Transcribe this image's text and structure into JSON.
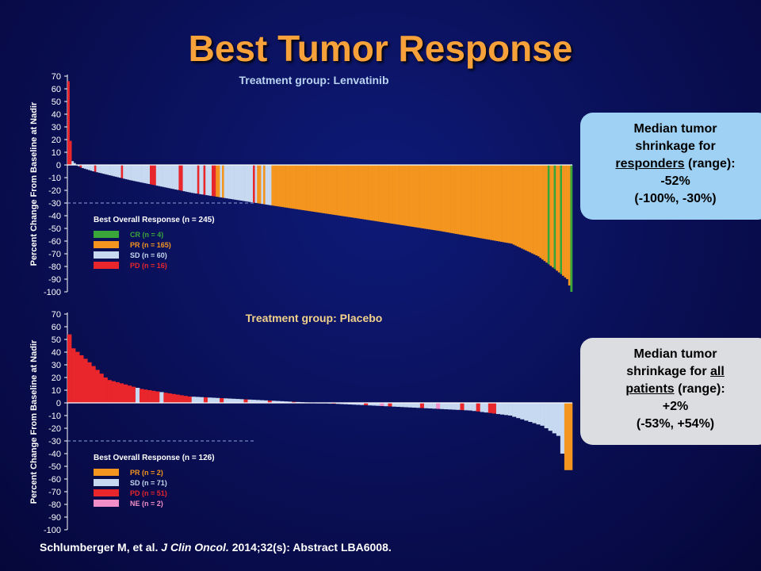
{
  "slide_title": "Best Tumor Response",
  "callouts": {
    "lenvatinib": {
      "line1": "Median tumor",
      "line2": "shrinkage for",
      "line3_underlined": "responders",
      "line3_rest": " (range):",
      "value": "-52%",
      "range": "(-100%, -30%)"
    },
    "placebo": {
      "line1": "Median tumor",
      "line2_prefix": "shrinkage for ",
      "line2_underlined": "all",
      "line3_underlined": "patients",
      "line3_rest": " (range):",
      "value": "+2%",
      "range": "(-53%, +54%)"
    }
  },
  "footer": {
    "authors": "Schlumberger M, et al.",
    "journal": "J Clin Oncol.",
    "rest": "2014;32(s): Abstract LBA6008."
  },
  "colors": {
    "CR": "#3aa63a",
    "PR": "#f4951f",
    "SD": "#c6d9f0",
    "PD": "#e8262c",
    "NE": "#f28fc8",
    "background": "#0a0f55",
    "title": "#f7a13a"
  },
  "chart_data": [
    {
      "type": "bar",
      "title": "Treatment group: Lenvatinib",
      "title_color": "#b9d3f1",
      "ylabel": "Percent Change From Baseline at Nadir",
      "ylim": [
        -100,
        70
      ],
      "yticks": [
        70,
        60,
        50,
        40,
        30,
        20,
        10,
        0,
        -10,
        -20,
        -30,
        -40,
        -50,
        -60,
        -70,
        -80,
        -90,
        -100
      ],
      "reference_line": -30,
      "legend_title": "Best Overall Response (n = 245)",
      "legend": [
        {
          "key": "CR",
          "label": "CR (n = 4)"
        },
        {
          "key": "PR",
          "label": "PR (n = 165)"
        },
        {
          "key": "SD",
          "label": "SD (n = 60)"
        },
        {
          "key": "PD",
          "label": "PD (n = 16)"
        }
      ],
      "n": 245,
      "bar_colors_by_index": [
        {
          "range": [
            0,
            1
          ],
          "key": "PD"
        },
        {
          "range": [
            6,
            6
          ],
          "key": "PD"
        },
        {
          "range": [
            13,
            13
          ],
          "key": "PD"
        },
        {
          "range": [
            26,
            26
          ],
          "key": "PD"
        },
        {
          "range": [
            40,
            42
          ],
          "key": "PD"
        },
        {
          "range": [
            54,
            55
          ],
          "key": "PD"
        },
        {
          "range": [
            63,
            63
          ],
          "key": "PD"
        },
        {
          "range": [
            66,
            66
          ],
          "key": "PD"
        },
        {
          "range": [
            70,
            71
          ],
          "key": "PD"
        },
        {
          "range": [
            72,
            73
          ],
          "key": "PR"
        },
        {
          "range": [
            75,
            75
          ],
          "key": "PR"
        },
        {
          "range": [
            90,
            90
          ],
          "key": "PD"
        },
        {
          "range": [
            92,
            93
          ],
          "key": "PR"
        },
        {
          "range": [
            95,
            95
          ],
          "key": "PR"
        },
        {
          "range": [
            99,
            244
          ],
          "key": "PR"
        },
        {
          "range": [
            233,
            233
          ],
          "key": "CR"
        },
        {
          "range": [
            236,
            236
          ],
          "key": "CR"
        },
        {
          "range": [
            239,
            239
          ],
          "key": "CR"
        },
        {
          "range": [
            244,
            244
          ],
          "key": "CR"
        }
      ],
      "value_curve": [
        [
          0,
          66
        ],
        [
          1,
          19
        ],
        [
          2,
          3
        ],
        [
          4,
          0
        ],
        [
          6,
          -2
        ],
        [
          12,
          -5
        ],
        [
          30,
          -12
        ],
        [
          60,
          -22
        ],
        [
          99,
          -32
        ],
        [
          140,
          -42
        ],
        [
          180,
          -52
        ],
        [
          215,
          -62
        ],
        [
          228,
          -72
        ],
        [
          236,
          -82
        ],
        [
          242,
          -90
        ],
        [
          244,
          -100
        ]
      ]
    },
    {
      "type": "bar",
      "title": "Treatment group: Placebo",
      "title_color": "#f2d28b",
      "ylabel": "Percent Change From Baseline at Nadir",
      "ylim": [
        -100,
        70
      ],
      "yticks": [
        70,
        60,
        50,
        40,
        30,
        20,
        10,
        0,
        -10,
        -20,
        -30,
        -40,
        -50,
        -60,
        -70,
        -80,
        -90,
        -100
      ],
      "reference_line": -30,
      "legend_title": "Best Overall Response (n = 126)",
      "legend": [
        {
          "key": "PR",
          "label": "PR (n = 2)"
        },
        {
          "key": "SD",
          "label": "SD (n = 71)"
        },
        {
          "key": "PD",
          "label": "PD (n = 51)"
        },
        {
          "key": "NE",
          "label": "NE (n = 2)"
        }
      ],
      "n": 126,
      "bar_colors_by_index": [
        {
          "range": [
            0,
            9
          ],
          "key": "PD"
        },
        {
          "range": [
            10,
            16
          ],
          "key": "PD"
        },
        {
          "range": [
            18,
            22
          ],
          "key": "PD"
        },
        {
          "range": [
            24,
            28
          ],
          "key": "PD"
        },
        {
          "range": [
            29,
            30
          ],
          "key": "PD"
        },
        {
          "range": [
            34,
            34
          ],
          "key": "PD"
        },
        {
          "range": [
            38,
            38
          ],
          "key": "PD"
        },
        {
          "range": [
            44,
            44
          ],
          "key": "PD"
        },
        {
          "range": [
            50,
            50
          ],
          "key": "PD"
        },
        {
          "range": [
            56,
            56
          ],
          "key": "PD"
        },
        {
          "range": [
            60,
            60
          ],
          "key": "PD"
        },
        {
          "range": [
            66,
            66
          ],
          "key": "PD"
        },
        {
          "range": [
            74,
            74
          ],
          "key": "PD"
        },
        {
          "range": [
            80,
            80
          ],
          "key": "PD"
        },
        {
          "range": [
            88,
            88
          ],
          "key": "PD"
        },
        {
          "range": [
            98,
            98
          ],
          "key": "PD"
        },
        {
          "range": [
            102,
            102
          ],
          "key": "PD"
        },
        {
          "range": [
            105,
            106
          ],
          "key": "PD"
        },
        {
          "range": [
            78,
            78
          ],
          "key": "NE"
        },
        {
          "range": [
            92,
            92
          ],
          "key": "NE"
        },
        {
          "range": [
            124,
            125
          ],
          "key": "PR"
        }
      ],
      "value_curve": [
        [
          0,
          54
        ],
        [
          1,
          43
        ],
        [
          5,
          32
        ],
        [
          9,
          20
        ],
        [
          10,
          18
        ],
        [
          18,
          11
        ],
        [
          30,
          5
        ],
        [
          55,
          1
        ],
        [
          75,
          -2
        ],
        [
          100,
          -6
        ],
        [
          110,
          -10
        ],
        [
          118,
          -18
        ],
        [
          122,
          -26
        ],
        [
          123,
          -40
        ],
        [
          124,
          -53
        ],
        [
          125,
          -53
        ]
      ]
    }
  ]
}
